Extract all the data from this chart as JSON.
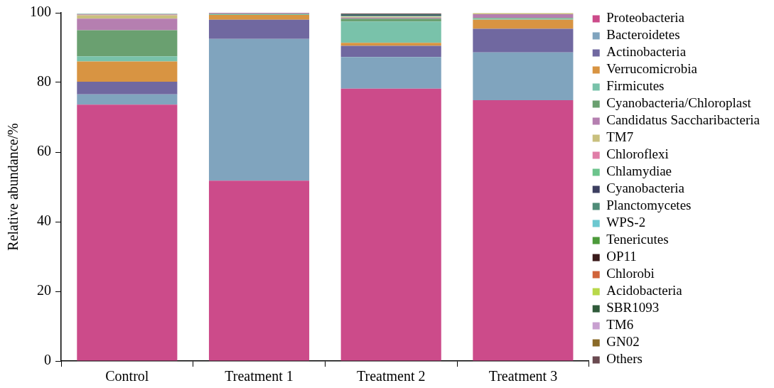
{
  "chart_data": {
    "type": "bar",
    "stacked": true,
    "ylabel": "Relative abundance/%",
    "categories": [
      "Control",
      "Treatment 1",
      "Treatment 2",
      "Treatment 3"
    ],
    "ylim": [
      0,
      100
    ],
    "yticks": [
      0,
      20,
      40,
      60,
      80,
      100
    ],
    "grid": false,
    "legend": "right",
    "series": [
      {
        "name": "Proteobacteria",
        "color": "#cc4b8a",
        "values": [
          73.6,
          51.8,
          78.2,
          74.9
        ]
      },
      {
        "name": "Bacteroidetes",
        "color": "#80a4be",
        "values": [
          3.0,
          40.7,
          9.1,
          13.7
        ]
      },
      {
        "name": "Actinobacteria",
        "color": "#7068a0",
        "values": [
          3.6,
          5.5,
          3.2,
          6.8
        ]
      },
      {
        "name": "Verrucomicrobia",
        "color": "#d89442",
        "values": [
          5.8,
          1.4,
          0.9,
          2.6
        ]
      },
      {
        "name": "Firmicutes",
        "color": "#79c2aa",
        "values": [
          1.5,
          0.2,
          6.1,
          0.3
        ]
      },
      {
        "name": "Cyanobacteria/Chloroplast",
        "color": "#6aa070",
        "values": [
          7.5,
          0.1,
          0.8,
          0.2
        ]
      },
      {
        "name": "Candidatus Saccharibacteria",
        "color": "#b57fb0",
        "values": [
          3.3,
          0.3,
          0.3,
          1.1
        ]
      },
      {
        "name": "TM7",
        "color": "#c9c07e",
        "values": [
          1.0,
          0,
          0.3,
          0.3
        ]
      },
      {
        "name": "Chloroflexi",
        "color": "#e07ea8",
        "values": [
          0.2,
          0,
          null,
          0
        ]
      },
      {
        "name": "Chlamydiae",
        "color": "#6cc48c",
        "values": [
          0,
          0,
          0.2,
          0
        ]
      },
      {
        "name": "Cyanobacteria",
        "color": "#3c3f60",
        "values": [
          0,
          0,
          0.3,
          0
        ]
      },
      {
        "name": "Planctomycetes",
        "color": "#4f8c78",
        "values": [
          0.2,
          0,
          0.2,
          null
        ]
      },
      {
        "name": "WPS-2",
        "color": "#6cc8d0",
        "values": [
          0,
          0,
          0,
          0
        ]
      },
      {
        "name": "Tenericutes",
        "color": "#4c9a3a",
        "values": [
          0,
          0,
          0,
          0
        ]
      },
      {
        "name": "OP11",
        "color": "#3a1a1a",
        "values": [
          0,
          0,
          0,
          0
        ]
      },
      {
        "name": "Chlorobi",
        "color": "#d0643a",
        "values": [
          0,
          0,
          0,
          0
        ]
      },
      {
        "name": "Acidobacteria",
        "color": "#b8d84a",
        "values": [
          0,
          0,
          0,
          0
        ]
      },
      {
        "name": "SBR1093",
        "color": "#2f5a3a",
        "values": [
          0,
          0,
          0,
          0
        ]
      },
      {
        "name": "TM6",
        "color": "#c8a0d0",
        "values": [
          0,
          0,
          0,
          0
        ]
      },
      {
        "name": "GN02",
        "color": "#8a6a28",
        "values": [
          0,
          0,
          0,
          0
        ]
      },
      {
        "name": "Others",
        "color": "#6a4a50",
        "values": [
          null,
          0,
          0.2,
          0
        ]
      }
    ]
  }
}
